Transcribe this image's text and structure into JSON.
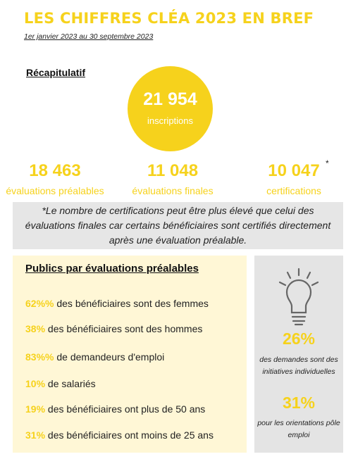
{
  "header": {
    "title": "LES CHIFFRES CLÉA 2023 EN BREF",
    "period": "1er janvier 2023 au 30 septembre 2023"
  },
  "recap": {
    "title": "Récapitulatif",
    "inscriptions_value": "21 954",
    "inscriptions_label": "inscriptions",
    "stats": [
      {
        "value": "18 463",
        "label": "évaluations préalables"
      },
      {
        "value": "11 048",
        "label": "évaluations finales"
      },
      {
        "value": "10 047",
        "label": "certifications"
      }
    ],
    "asterisk": "*"
  },
  "note": "*Le nombre de certifications peut être plus élevé que celui des évaluations finales car certains bénéficiaires sont certifiés directement après une évaluation préalable.",
  "publics": {
    "title": "Publics par évaluations préalables",
    "items": [
      {
        "pct": "62%%",
        "text": " des bénéficiaires sont des femmes"
      },
      {
        "pct": "38%",
        "text": " des bénéficiaires sont des hommes"
      },
      {
        "pct": "83%%",
        "text": " de demandeurs d'emploi"
      },
      {
        "pct": "10%",
        "text": " de salariés"
      },
      {
        "pct": "19%",
        "text": " des bénéficiaires ont plus de 50 ans"
      },
      {
        "pct": "31%",
        "text": " des bénéficiaires ont moins de 25 ans"
      }
    ]
  },
  "side": {
    "icon": "lightbulb-icon",
    "stat1_value": "26%",
    "stat1_text": "des demandes sont des initiatives individuelles",
    "stat2_value": "31%",
    "stat2_text": "pour les orientations pôle emploi"
  },
  "colors": {
    "accent": "#f6d21c",
    "note_bg": "#e6e6e6",
    "publics_bg": "#fff7d6",
    "side_bg": "#e4e4e4"
  }
}
